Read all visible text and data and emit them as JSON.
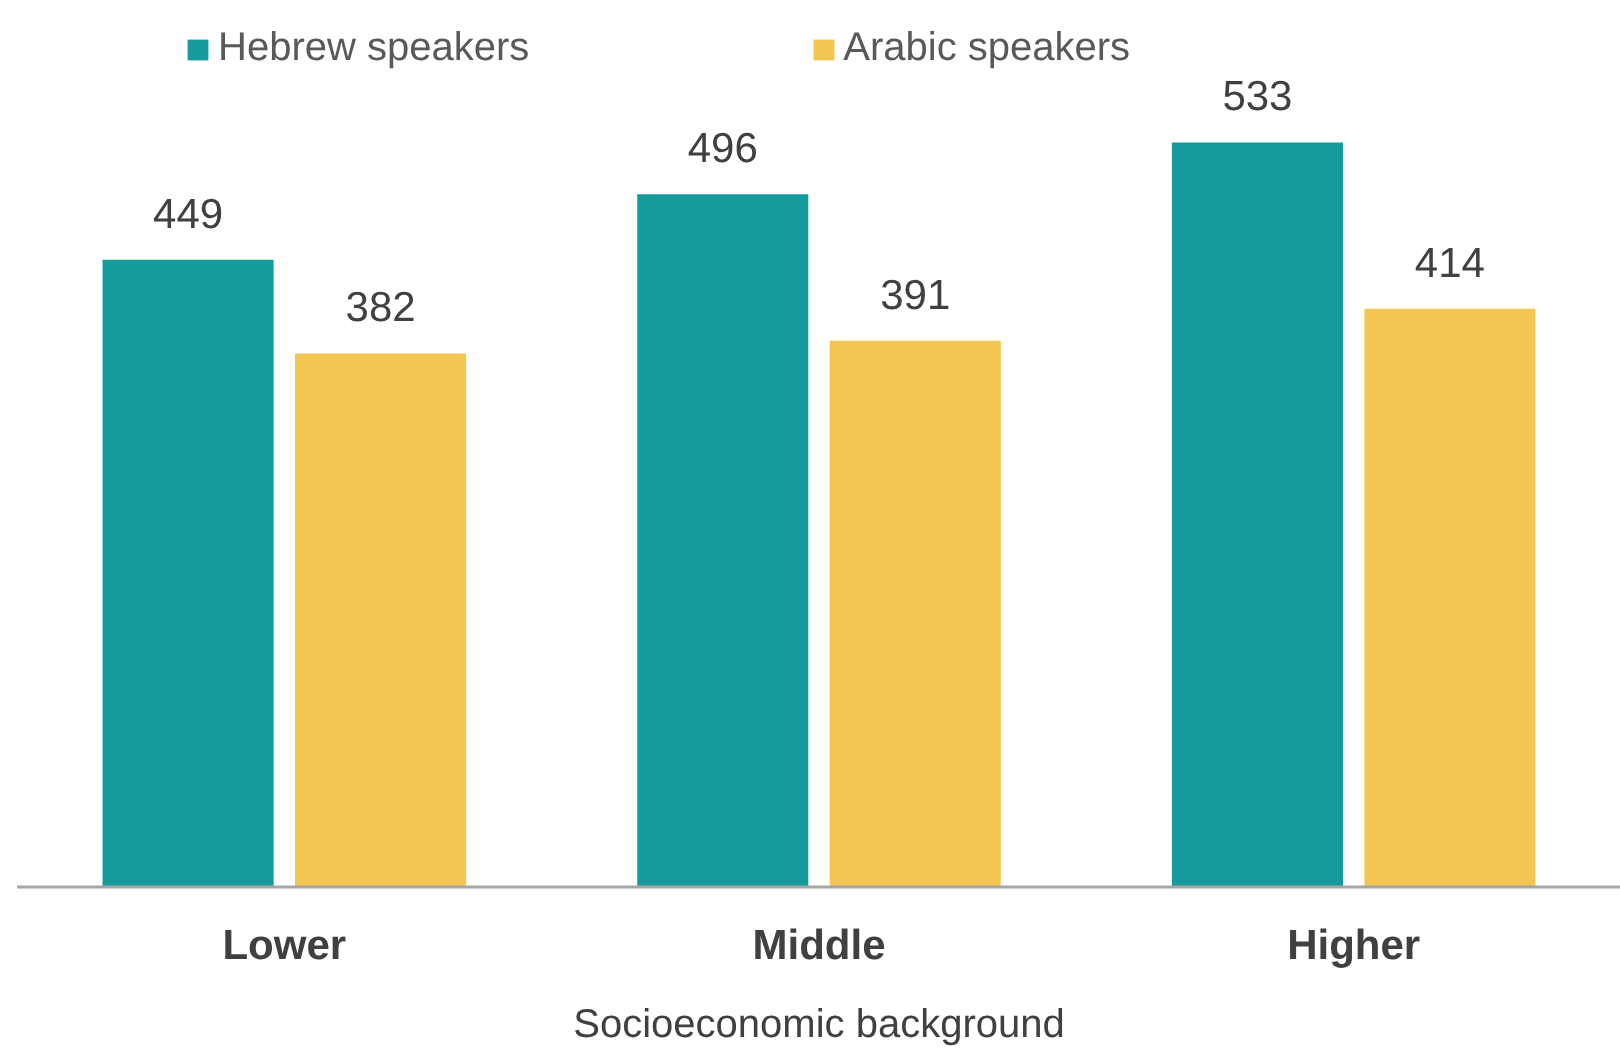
{
  "chart_data": {
    "type": "bar",
    "categories": [
      "Lower",
      "Middle",
      "Higher"
    ],
    "series": [
      {
        "name": "Hebrew speakers",
        "color": "#169b9c",
        "values": [
          449,
          496,
          533
        ]
      },
      {
        "name": "Arabic speakers",
        "color": "#f2c650",
        "values": [
          382,
          391,
          414
        ]
      }
    ],
    "xlabel": "Socioeconomic background",
    "data_labels": true,
    "legend": "top",
    "tick_labels": "x"
  }
}
